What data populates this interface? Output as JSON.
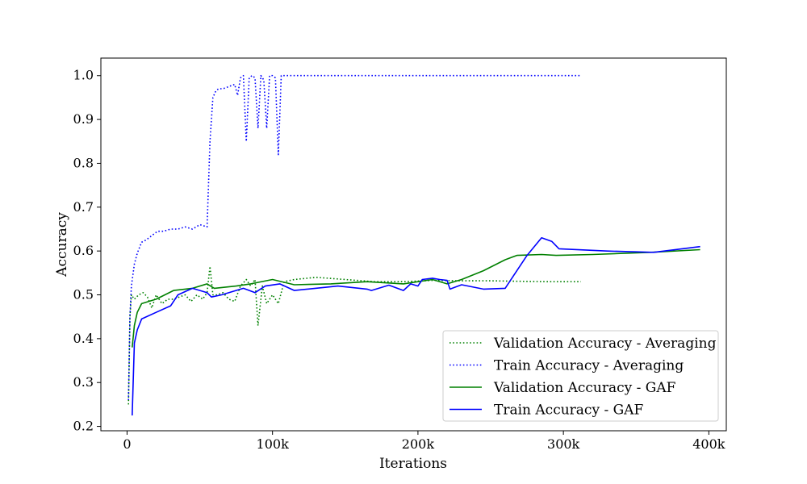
{
  "chart_data": {
    "type": "line",
    "title": "",
    "xlabel": "Iterations",
    "ylabel": "Accuracy",
    "xlim": [
      -18000,
      412000
    ],
    "ylim": [
      0.19,
      1.04
    ],
    "xticks": [
      {
        "value": 0,
        "label": "0"
      },
      {
        "value": 100000,
        "label": "100k"
      },
      {
        "value": 200000,
        "label": "200k"
      },
      {
        "value": 300000,
        "label": "300k"
      },
      {
        "value": 400000,
        "label": "400k"
      }
    ],
    "yticks": [
      {
        "value": 0.2,
        "label": "0.2"
      },
      {
        "value": 0.3,
        "label": "0.3"
      },
      {
        "value": 0.4,
        "label": "0.4"
      },
      {
        "value": 0.5,
        "label": "0.5"
      },
      {
        "value": 0.6,
        "label": "0.6"
      },
      {
        "value": 0.7,
        "label": "0.7"
      },
      {
        "value": 0.8,
        "label": "0.8"
      },
      {
        "value": 0.9,
        "label": "0.9"
      },
      {
        "value": 1.0,
        "label": "1.0"
      }
    ],
    "grid": false,
    "legend_position": "bottom-right",
    "series": [
      {
        "name": "Validation Accuracy - Averaging",
        "color": "#008000",
        "style": "dotted",
        "x": [
          1000,
          2000,
          3000,
          5000,
          8000,
          11000,
          14000,
          17000,
          20000,
          24000,
          28000,
          32000,
          36000,
          40000,
          44000,
          48000,
          52000,
          55000,
          57000,
          59000,
          62000,
          66000,
          70000,
          74000,
          78000,
          82000,
          85000,
          88000,
          90000,
          93000,
          96000,
          100000,
          104000,
          108000,
          115000,
          130000,
          150000,
          170000,
          190000,
          210000,
          230000,
          250000,
          270000,
          290000,
          312000
        ],
        "y": [
          0.25,
          0.45,
          0.5,
          0.49,
          0.5,
          0.505,
          0.495,
          0.47,
          0.5,
          0.48,
          0.49,
          0.49,
          0.495,
          0.5,
          0.485,
          0.5,
          0.49,
          0.505,
          0.565,
          0.5,
          0.5,
          0.505,
          0.49,
          0.485,
          0.52,
          0.535,
          0.52,
          0.535,
          0.43,
          0.52,
          0.48,
          0.5,
          0.48,
          0.53,
          0.535,
          0.54,
          0.535,
          0.53,
          0.53,
          0.533,
          0.532,
          0.532,
          0.531,
          0.53,
          0.53
        ]
      },
      {
        "name": "Train Accuracy - Averaging",
        "color": "#0000ff",
        "style": "dotted",
        "x": [
          1000,
          2000,
          3000,
          5000,
          7000,
          10000,
          13000,
          17000,
          21000,
          25000,
          30000,
          35000,
          40000,
          45000,
          50000,
          55000,
          57000,
          59000,
          61000,
          63000,
          66000,
          70000,
          74000,
          76000,
          78000,
          80000,
          82000,
          84000,
          86000,
          88000,
          90000,
          92000,
          94000,
          96000,
          98000,
          100000,
          102000,
          104000,
          106000,
          108000,
          120000,
          150000,
          200000,
          250000,
          312000
        ],
        "y": [
          0.26,
          0.45,
          0.52,
          0.57,
          0.595,
          0.62,
          0.625,
          0.635,
          0.645,
          0.645,
          0.65,
          0.65,
          0.655,
          0.65,
          0.66,
          0.655,
          0.85,
          0.95,
          0.965,
          0.97,
          0.97,
          0.975,
          0.98,
          0.955,
          0.995,
          1.0,
          0.85,
          0.995,
          1.0,
          0.995,
          0.88,
          1.0,
          0.99,
          0.88,
          1.0,
          1.0,
          0.995,
          0.82,
          1.0,
          1.0,
          1.0,
          1.0,
          1.0,
          1.0,
          1.0
        ]
      },
      {
        "name": "Validation Accuracy - GAF",
        "color": "#008000",
        "style": "solid",
        "x": [
          3500,
          5000,
          7000,
          10000,
          20000,
          32000,
          45000,
          55000,
          60000,
          75000,
          85000,
          100000,
          115000,
          140000,
          165000,
          190000,
          200000,
          210000,
          220000,
          230000,
          245000,
          260000,
          268000,
          285000,
          295000,
          320000,
          360000,
          394000
        ],
        "y": [
          0.38,
          0.43,
          0.46,
          0.48,
          0.49,
          0.51,
          0.515,
          0.525,
          0.515,
          0.52,
          0.525,
          0.535,
          0.523,
          0.525,
          0.53,
          0.525,
          0.53,
          0.535,
          0.525,
          0.535,
          0.555,
          0.58,
          0.59,
          0.592,
          0.59,
          0.592,
          0.597,
          0.603
        ]
      },
      {
        "name": "Train Accuracy - GAF",
        "color": "#0000ff",
        "style": "solid",
        "x": [
          3500,
          5000,
          7000,
          10000,
          20000,
          30000,
          35000,
          45000,
          55000,
          58000,
          65000,
          80000,
          88000,
          95000,
          105000,
          115000,
          145000,
          165000,
          168000,
          180000,
          190000,
          195000,
          200000,
          203000,
          210000,
          215000,
          220000,
          222000,
          230000,
          245000,
          260000,
          275000,
          285000,
          292000,
          297000,
          330000,
          362000,
          394000
        ],
        "y": [
          0.225,
          0.39,
          0.42,
          0.445,
          0.46,
          0.475,
          0.5,
          0.515,
          0.505,
          0.495,
          0.5,
          0.515,
          0.505,
          0.52,
          0.525,
          0.51,
          0.52,
          0.513,
          0.51,
          0.522,
          0.51,
          0.525,
          0.52,
          0.535,
          0.538,
          0.535,
          0.533,
          0.513,
          0.523,
          0.513,
          0.515,
          0.59,
          0.63,
          0.622,
          0.605,
          0.6,
          0.597,
          0.61
        ]
      }
    ]
  }
}
